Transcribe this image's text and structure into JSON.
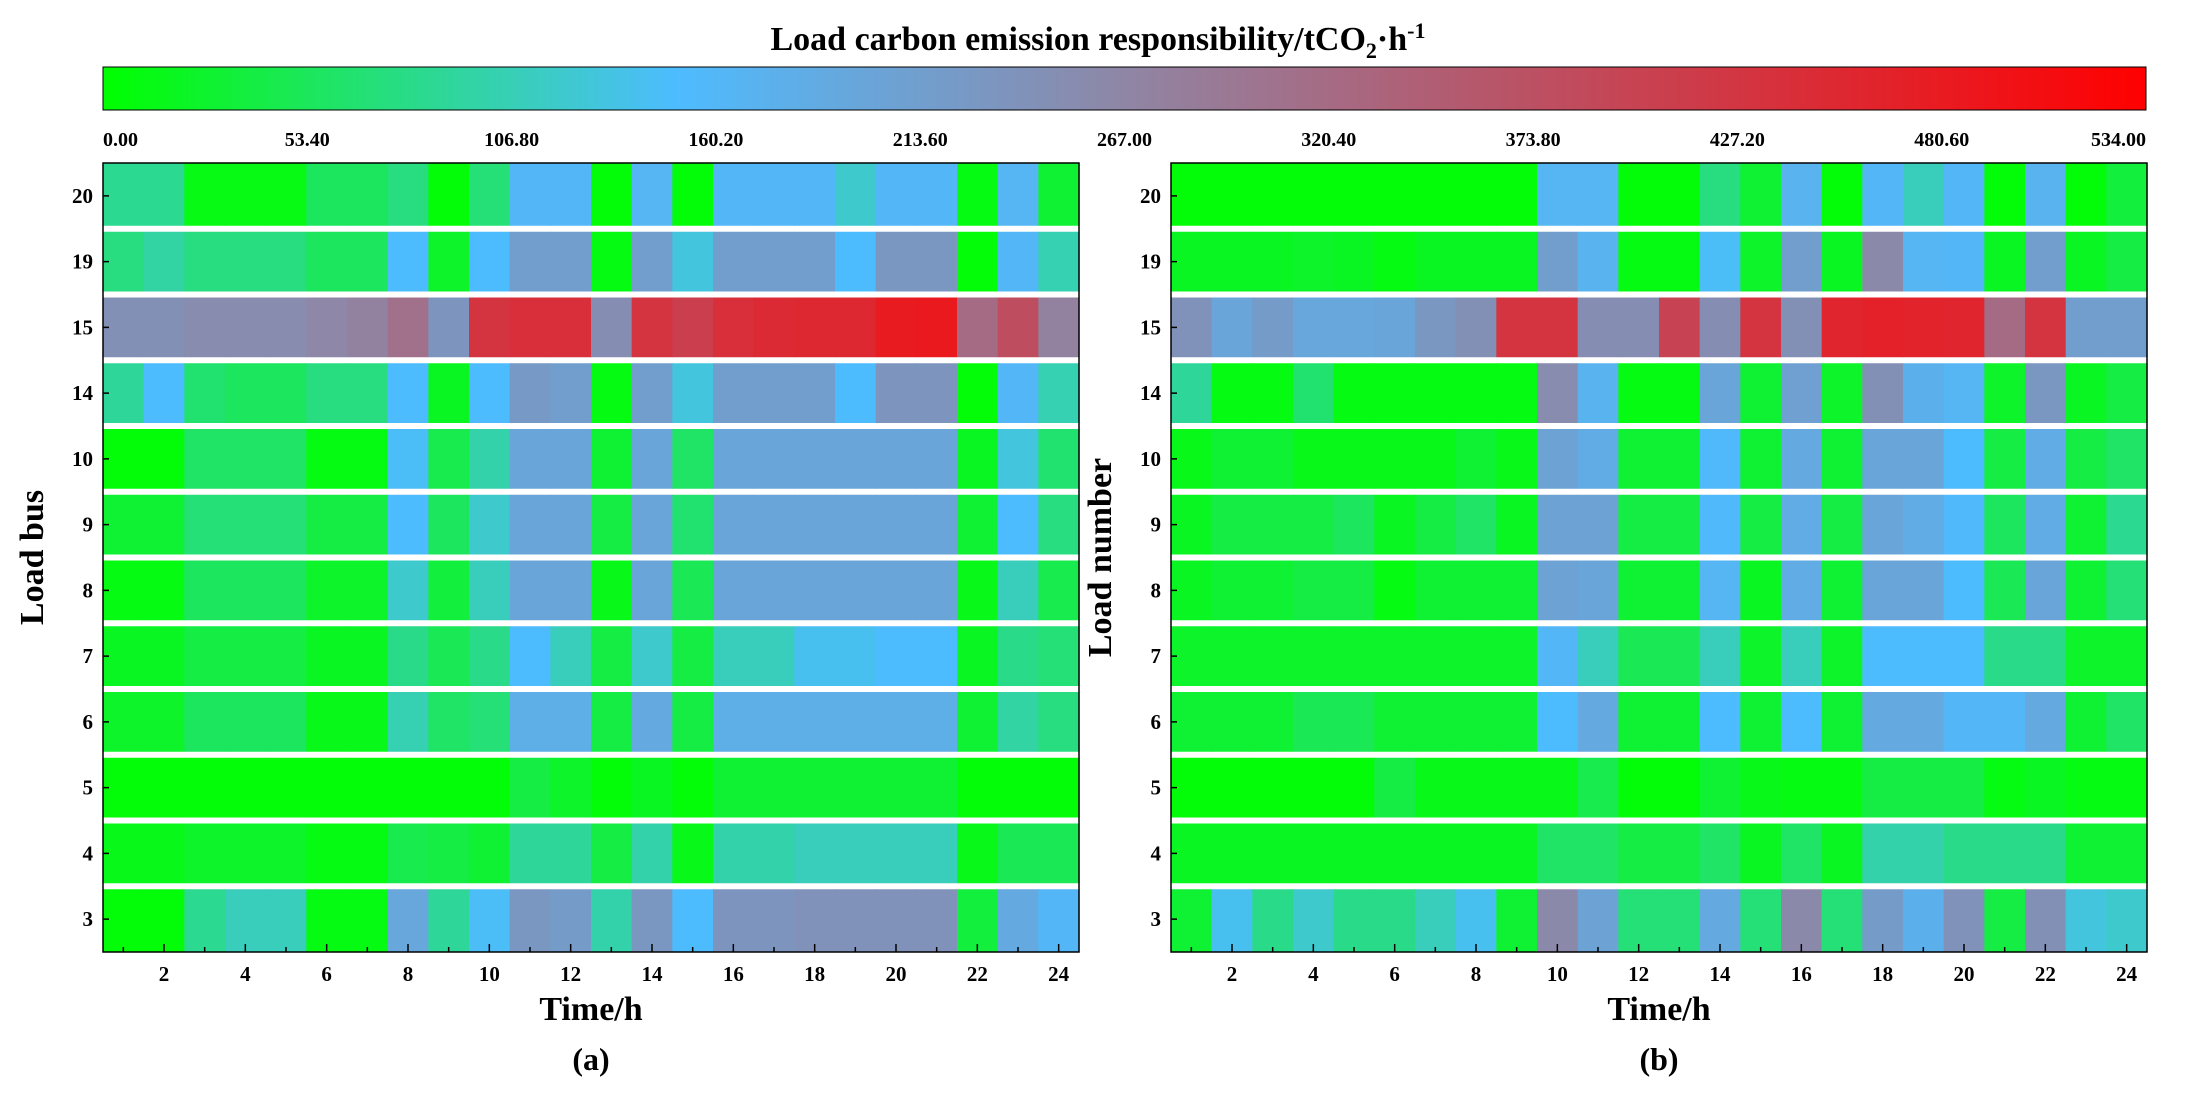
{
  "chart_data": {
    "colorbar": {
      "title_main": "Load carbon emission responsibility/tCO",
      "title_sub": "2",
      "title_mid": "·h",
      "title_sup": "-1",
      "min": 0,
      "max": 534,
      "ticks": [
        "0.00",
        "53.40",
        "106.80",
        "160.20",
        "213.60",
        "267.00",
        "320.40",
        "373.80",
        "427.20",
        "480.60",
        "534.00"
      ],
      "colors": [
        "#00ff00",
        "#4dbcff",
        "#8f86a5",
        "#ff0000"
      ]
    },
    "panels": [
      {
        "type": "heatmap",
        "label": "(a)",
        "xlabel": "Time/h",
        "ylabel": "Load bus",
        "x": [
          1,
          2,
          3,
          4,
          5,
          6,
          7,
          8,
          9,
          10,
          11,
          12,
          13,
          14,
          15,
          16,
          17,
          18,
          19,
          20,
          21,
          22,
          23,
          24
        ],
        "x_tick_labels": [
          "2",
          "4",
          "6",
          "8",
          "10",
          "12",
          "14",
          "16",
          "18",
          "20",
          "22",
          "24"
        ],
        "rows": [
          {
            "name": "20",
            "values": [
              85,
              85,
              12,
              12,
              12,
              55,
              55,
              75,
              5,
              70,
              160,
              160,
              5,
              165,
              5,
              160,
              160,
              160,
              120,
              160,
              160,
              10,
              165,
              30
            ]
          },
          {
            "name": "19",
            "values": [
              75,
              95,
              75,
              75,
              75,
              55,
              55,
              150,
              25,
              150,
              215,
              215,
              10,
              215,
              130,
              215,
              215,
              215,
              150,
              230,
              230,
              5,
              160,
              105
            ]
          },
          {
            "name": "15",
            "values": [
              245,
              245,
              255,
              255,
              255,
              265,
              275,
              310,
              235,
              430,
              440,
              440,
              250,
              430,
              410,
              440,
              450,
              455,
              455,
              480,
              485,
              320,
              380,
              275
            ]
          },
          {
            "name": "14",
            "values": [
              90,
              150,
              65,
              55,
              55,
              75,
              75,
              150,
              20,
              150,
              225,
              215,
              10,
              215,
              130,
              215,
              215,
              215,
              150,
              235,
              235,
              5,
              160,
              105
            ]
          },
          {
            "name": "10",
            "values": [
              5,
              5,
              60,
              60,
              60,
              10,
              10,
              145,
              45,
              100,
              200,
              200,
              30,
              200,
              60,
              200,
              200,
              200,
              200,
              200,
              200,
              20,
              130,
              65
            ]
          },
          {
            "name": "9",
            "values": [
              30,
              30,
              70,
              70,
              70,
              40,
              40,
              150,
              55,
              120,
              200,
              200,
              40,
              200,
              65,
              200,
              200,
              200,
              200,
              200,
              200,
              30,
              150,
              75
            ]
          },
          {
            "name": "8",
            "values": [
              10,
              10,
              55,
              55,
              55,
              25,
              25,
              120,
              35,
              110,
              200,
              200,
              15,
              200,
              50,
              200,
              200,
              200,
              200,
              200,
              200,
              15,
              110,
              45
            ]
          },
          {
            "name": "7",
            "values": [
              20,
              20,
              40,
              40,
              40,
              20,
              20,
              80,
              50,
              80,
              150,
              110,
              40,
              120,
              40,
              110,
              110,
              140,
              140,
              150,
              150,
              20,
              80,
              70
            ]
          },
          {
            "name": "6",
            "values": [
              25,
              25,
              55,
              55,
              55,
              15,
              15,
              105,
              60,
              70,
              180,
              180,
              40,
              190,
              40,
              180,
              180,
              180,
              180,
              180,
              180,
              30,
              95,
              75
            ]
          },
          {
            "name": "5",
            "values": [
              5,
              5,
              5,
              5,
              5,
              5,
              5,
              5,
              5,
              5,
              40,
              25,
              5,
              20,
              5,
              30,
              30,
              30,
              30,
              30,
              30,
              5,
              5,
              5
            ]
          },
          {
            "name": "4",
            "values": [
              15,
              15,
              25,
              25,
              25,
              10,
              10,
              45,
              40,
              30,
              90,
              90,
              40,
              100,
              15,
              100,
              100,
              110,
              110,
              110,
              110,
              15,
              50,
              50
            ]
          },
          {
            "name": "3",
            "values": [
              5,
              5,
              85,
              110,
              110,
              10,
              10,
              195,
              90,
              145,
              230,
              220,
              100,
              230,
              150,
              235,
              235,
              240,
              240,
              240,
              240,
              35,
              190,
              160
            ]
          }
        ]
      },
      {
        "type": "heatmap",
        "label": "(b)",
        "xlabel": "Time/h",
        "ylabel": "Load number",
        "x": [
          1,
          2,
          3,
          4,
          5,
          6,
          7,
          8,
          9,
          10,
          11,
          12,
          13,
          14,
          15,
          16,
          17,
          18,
          19,
          20,
          21,
          22,
          23,
          24
        ],
        "x_tick_labels": [
          "2",
          "4",
          "6",
          "8",
          "10",
          "12",
          "14",
          "16",
          "18",
          "20",
          "22",
          "24"
        ],
        "rows": [
          {
            "name": "20",
            "values": [
              5,
              5,
              5,
              5,
              5,
              5,
              5,
              5,
              5,
              165,
              165,
              5,
              5,
              75,
              30,
              170,
              5,
              160,
              110,
              160,
              5,
              170,
              5,
              35
            ]
          },
          {
            "name": "19",
            "values": [
              20,
              20,
              20,
              25,
              20,
              10,
              20,
              20,
              20,
              215,
              170,
              10,
              10,
              145,
              25,
              215,
              20,
              260,
              165,
              160,
              20,
              215,
              20,
              40
            ]
          },
          {
            "name": "15",
            "values": [
              240,
              200,
              220,
              195,
              195,
              200,
              230,
              245,
              430,
              430,
              250,
              250,
              400,
              250,
              430,
              245,
              460,
              470,
              465,
              460,
              320,
              430,
              215,
              215
            ]
          },
          {
            "name": "14",
            "values": [
              90,
              10,
              10,
              65,
              10,
              10,
              10,
              10,
              10,
              255,
              170,
              10,
              10,
              200,
              30,
              210,
              25,
              245,
              175,
              165,
              25,
              230,
              20,
              40
            ]
          },
          {
            "name": "10",
            "values": [
              15,
              30,
              30,
              15,
              15,
              15,
              15,
              30,
              15,
              205,
              185,
              30,
              30,
              155,
              30,
              190,
              30,
              200,
              200,
              150,
              40,
              185,
              40,
              60
            ]
          },
          {
            "name": "9",
            "values": [
              20,
              40,
              40,
              40,
              55,
              20,
              40,
              60,
              20,
              205,
              205,
              40,
              40,
              155,
              40,
              185,
              40,
              200,
              185,
              155,
              55,
              185,
              30,
              85
            ]
          },
          {
            "name": "8",
            "values": [
              20,
              30,
              30,
              40,
              40,
              10,
              30,
              30,
              30,
              205,
              200,
              30,
              30,
              165,
              20,
              185,
              30,
              200,
              200,
              150,
              50,
              200,
              30,
              70
            ]
          },
          {
            "name": "7",
            "values": [
              25,
              25,
              25,
              25,
              25,
              25,
              25,
              25,
              25,
              160,
              110,
              50,
              50,
              110,
              25,
              110,
              25,
              150,
              150,
              150,
              80,
              80,
              25,
              25
            ]
          },
          {
            "name": "6",
            "values": [
              30,
              30,
              30,
              50,
              50,
              30,
              30,
              30,
              30,
              150,
              190,
              30,
              30,
              150,
              30,
              150,
              30,
              190,
              190,
              160,
              160,
              190,
              30,
              60
            ]
          },
          {
            "name": "5",
            "values": [
              5,
              5,
              5,
              5,
              5,
              40,
              15,
              15,
              15,
              15,
              45,
              5,
              5,
              30,
              15,
              10,
              10,
              40,
              40,
              40,
              10,
              20,
              10,
              10
            ]
          },
          {
            "name": "4",
            "values": [
              20,
              20,
              20,
              20,
              20,
              20,
              20,
              20,
              20,
              60,
              60,
              40,
              40,
              60,
              20,
              60,
              20,
              100,
              100,
              80,
              80,
              80,
              30,
              30
            ]
          },
          {
            "name": "3",
            "values": [
              30,
              140,
              80,
              120,
              80,
              80,
              110,
              140,
              30,
              260,
              205,
              70,
              70,
              190,
              70,
              260,
              70,
              220,
              175,
              240,
              40,
              245,
              130,
              120
            ]
          }
        ]
      }
    ]
  }
}
